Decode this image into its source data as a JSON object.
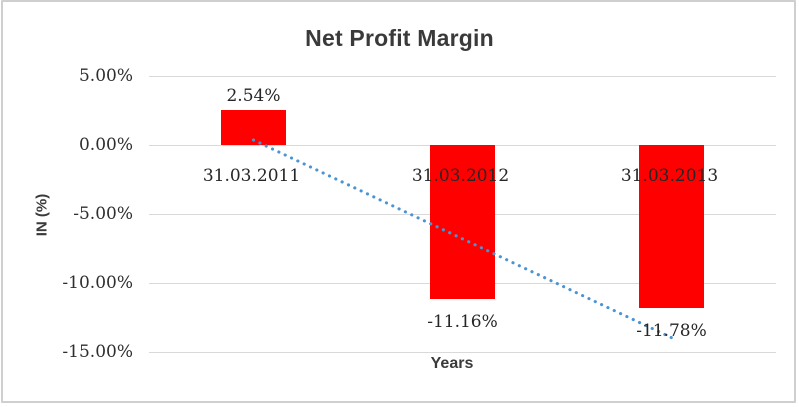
{
  "chart_data": {
    "type": "bar",
    "title": "Net Profit Margin",
    "xlabel": "Years",
    "ylabel": "IN (%)",
    "categories": [
      "31.03.2011",
      "31.03.2012",
      "31.03.2013"
    ],
    "values": [
      2.54,
      -11.16,
      -11.78
    ],
    "data_labels": [
      "2.54%",
      "-11.16%",
      "-11.78%"
    ],
    "yticks": [
      "5.00%",
      "0.00%",
      "-5.00%",
      "-10.00%",
      "-15.00%"
    ],
    "ytick_values": [
      5,
      0,
      -5,
      -10,
      -15
    ],
    "ylim": [
      -15,
      5
    ],
    "grid": true,
    "legend": "none",
    "bar_color": "#ff0000",
    "gridline_color": "#d9d9d9",
    "trendline": {
      "style": "dotted",
      "color": "#4a94d4",
      "start_value": 0.36,
      "end_value": -13.96
    }
  }
}
